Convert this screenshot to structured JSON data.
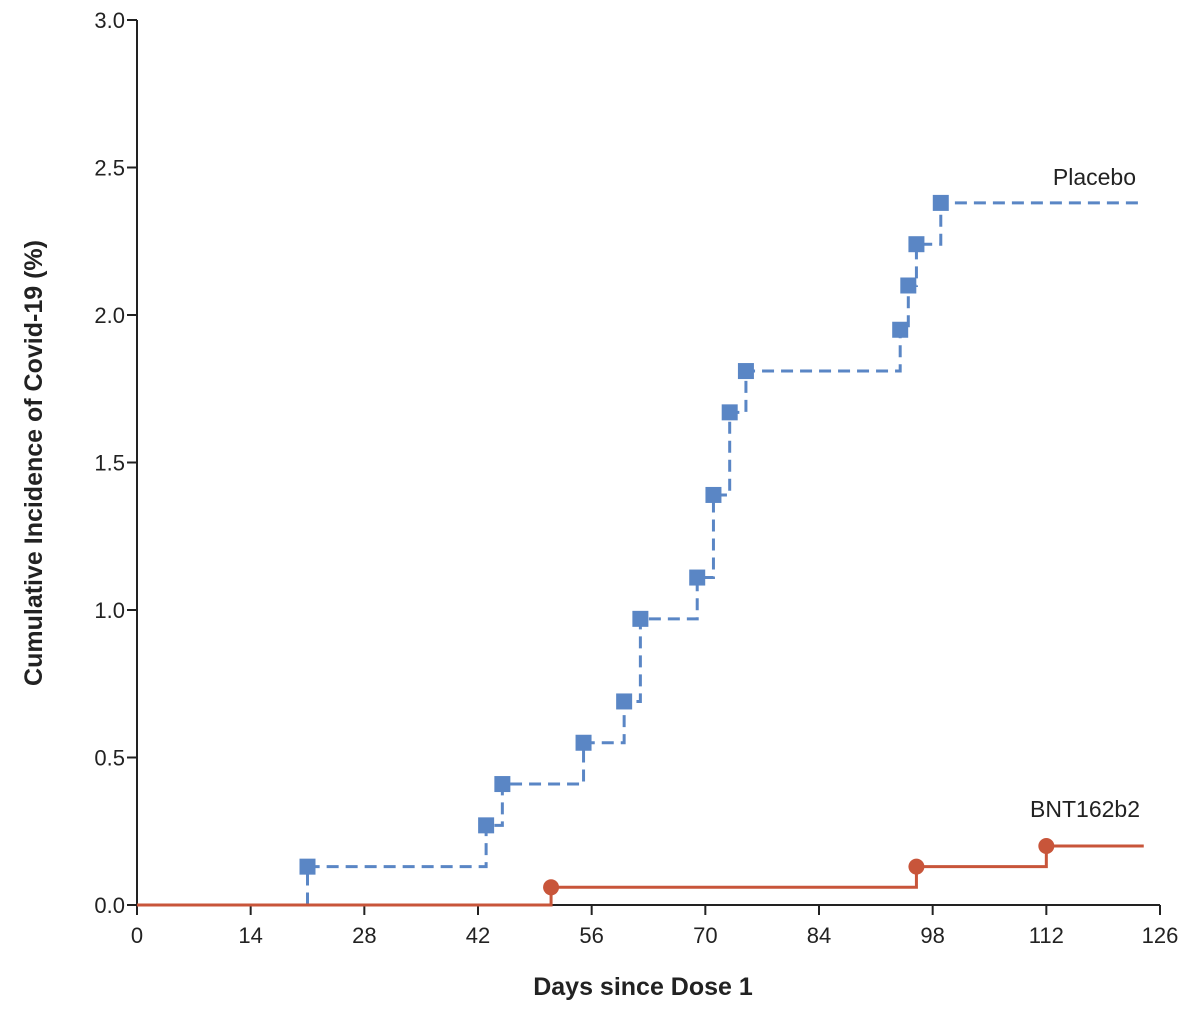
{
  "chart_data": {
    "type": "line",
    "subtype": "kaplan-meier step curves",
    "xlabel": "Days since Dose 1",
    "ylabel": "Cumulative Incidence of Covid-19 (%)",
    "xlim": [
      0,
      126
    ],
    "ylim": [
      0,
      3.0
    ],
    "xticks": [
      0,
      14,
      28,
      42,
      56,
      70,
      84,
      98,
      112,
      126
    ],
    "xtick_labels": [
      "0",
      "14",
      "28",
      "42",
      "56",
      "70",
      "84",
      "98",
      "112",
      "126"
    ],
    "yticks": [
      0,
      0.5,
      1.0,
      1.5,
      2.0,
      2.5,
      3.0
    ],
    "ytick_labels": [
      "0.0",
      "0.5",
      "1.0",
      "1.5",
      "2.0",
      "2.5",
      "3.0"
    ],
    "grid": false,
    "series": [
      {
        "name": "Placebo",
        "color": "#5a86c5",
        "line_style": "dashed",
        "marker": "square",
        "x_end": 124,
        "points": [
          {
            "x": 0,
            "y": 0.0
          },
          {
            "x": 21,
            "y": 0.13
          },
          {
            "x": 43,
            "y": 0.27
          },
          {
            "x": 45,
            "y": 0.41
          },
          {
            "x": 55,
            "y": 0.55
          },
          {
            "x": 60,
            "y": 0.69
          },
          {
            "x": 62,
            "y": 0.97
          },
          {
            "x": 69,
            "y": 1.11
          },
          {
            "x": 71,
            "y": 1.39
          },
          {
            "x": 73,
            "y": 1.67
          },
          {
            "x": 75,
            "y": 1.81
          },
          {
            "x": 94,
            "y": 1.95
          },
          {
            "x": 95,
            "y": 2.1
          },
          {
            "x": 96,
            "y": 2.24
          },
          {
            "x": 99,
            "y": 2.38
          }
        ]
      },
      {
        "name": "BNT162b2",
        "color": "#c8553a",
        "line_style": "solid",
        "marker": "circle",
        "x_end": 124,
        "points": [
          {
            "x": 0,
            "y": 0.0
          },
          {
            "x": 51,
            "y": 0.06
          },
          {
            "x": 96,
            "y": 0.13
          },
          {
            "x": 112,
            "y": 0.2
          }
        ]
      }
    ]
  }
}
